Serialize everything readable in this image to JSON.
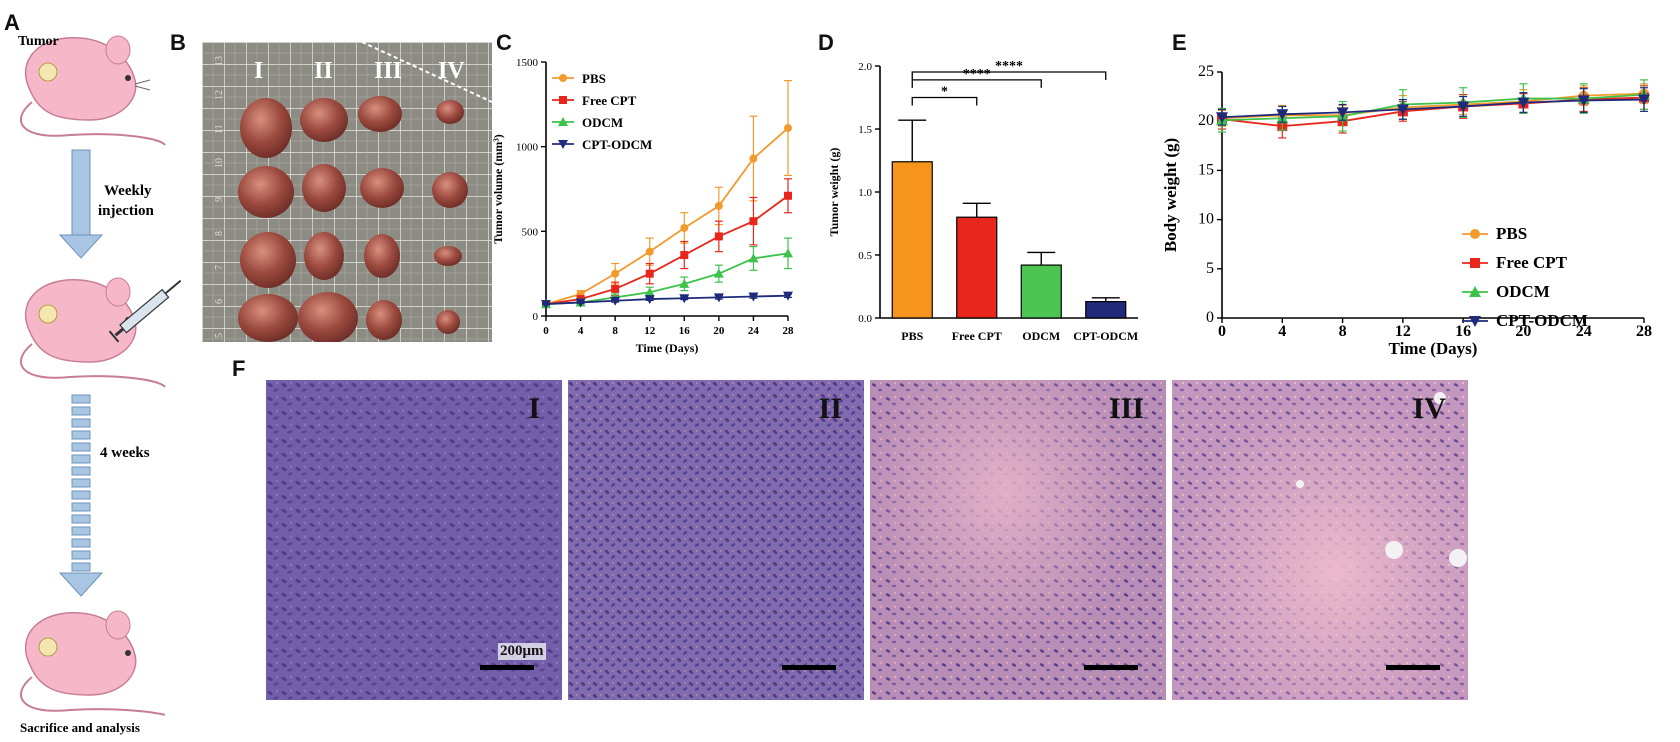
{
  "panels": {
    "a": "A",
    "b": "B",
    "c": "C",
    "d": "D",
    "e": "E",
    "f": "F"
  },
  "schematic": {
    "tumor_label": "Tumor",
    "weekly_injection_1": "Weekly",
    "weekly_injection_2": "injection",
    "duration": "4 weeks",
    "end_label": "Sacrifice and analysis"
  },
  "photo": {
    "group_labels": [
      "I",
      "II",
      "III",
      "IV"
    ],
    "ruler_ticks": [
      "13",
      "12",
      "11",
      "10",
      "9",
      "8",
      "7",
      "6",
      "5"
    ]
  },
  "histology": {
    "group_labels": [
      "I",
      "II",
      "III",
      "IV"
    ],
    "scale_bar": "200μm"
  },
  "chart_data": [
    {
      "type": "line",
      "panel": "C",
      "xlabel": "Time (Days)",
      "ylabel": "Tumor volume (mm³)",
      "x": [
        0,
        4,
        8,
        12,
        16,
        20,
        24,
        28
      ],
      "xlim": [
        0,
        28
      ],
      "ylim": [
        0,
        1500
      ],
      "yticks": [
        0,
        500,
        1000,
        1500
      ],
      "legend_placement": "top-left",
      "series": [
        {
          "name": "PBS",
          "color": "#F39A2E",
          "values": [
            70,
            130,
            250,
            380,
            520,
            650,
            930,
            1110
          ],
          "errors": [
            10,
            20,
            60,
            80,
            90,
            110,
            250,
            280
          ]
        },
        {
          "name": "Free CPT",
          "color": "#E8261C",
          "values": [
            70,
            100,
            160,
            250,
            360,
            470,
            560,
            710
          ],
          "errors": [
            10,
            15,
            40,
            60,
            80,
            90,
            140,
            100
          ]
        },
        {
          "name": "ODCM",
          "color": "#3DC24A",
          "values": [
            70,
            80,
            110,
            140,
            190,
            250,
            340,
            370
          ],
          "errors": [
            8,
            10,
            20,
            30,
            40,
            50,
            70,
            90
          ]
        },
        {
          "name": "CPT-ODCM",
          "color": "#1F2A7A",
          "values": [
            70,
            80,
            90,
            100,
            105,
            110,
            115,
            120
          ],
          "errors": [
            5,
            5,
            8,
            8,
            8,
            10,
            10,
            10
          ]
        }
      ]
    },
    {
      "type": "bar",
      "panel": "D",
      "ylabel": "Tumor weight (g)",
      "categories": [
        "PBS",
        "Free CPT",
        "ODCM",
        "CPT-ODCM"
      ],
      "values": [
        1.24,
        0.8,
        0.42,
        0.13
      ],
      "errors": [
        0.33,
        0.11,
        0.1,
        0.03
      ],
      "colors": [
        "#F7941D",
        "#E8261C",
        "#4CC552",
        "#1F2A7A"
      ],
      "ylim": [
        0,
        2.0
      ],
      "yticks": [
        "0.0",
        "0.5",
        "1.0",
        "1.5",
        "2.0"
      ],
      "significance": [
        {
          "from": "PBS",
          "to": "Free CPT",
          "label": "*"
        },
        {
          "from": "PBS",
          "to": "ODCM",
          "label": "****"
        },
        {
          "from": "PBS",
          "to": "CPT-ODCM",
          "label": "****"
        }
      ]
    },
    {
      "type": "line",
      "panel": "E",
      "xlabel": "Time (Days)",
      "ylabel": "Body weight (g)",
      "x": [
        0,
        4,
        8,
        12,
        16,
        20,
        24,
        28
      ],
      "xlim": [
        0,
        28
      ],
      "ylim": [
        0,
        25
      ],
      "yticks": [
        0,
        5,
        10,
        15,
        20,
        25
      ],
      "legend_placement": "bottom-right",
      "series": [
        {
          "name": "PBS",
          "color": "#F39A2E",
          "values": [
            20.3,
            20.6,
            20.6,
            21.4,
            21.7,
            22.0,
            22.6,
            22.8
          ],
          "errors": [
            0.8,
            1.0,
            1.0,
            1.2,
            1.0,
            1.2,
            1.0,
            1.0
          ]
        },
        {
          "name": "Free CPT",
          "color": "#E8261C",
          "values": [
            20.2,
            19.5,
            20.0,
            21.0,
            21.5,
            21.8,
            22.2,
            22.4
          ],
          "errors": [
            1.0,
            1.2,
            1.2,
            1.0,
            1.2,
            1.0,
            1.2,
            1.2
          ]
        },
        {
          "name": "ODCM",
          "color": "#3DC24A",
          "values": [
            20.1,
            20.3,
            20.5,
            21.7,
            21.9,
            22.3,
            22.3,
            22.7
          ],
          "errors": [
            1.2,
            1.2,
            1.5,
            1.5,
            1.5,
            1.5,
            1.5,
            1.5
          ]
        },
        {
          "name": "CPT-ODCM",
          "color": "#1F2A7A",
          "values": [
            20.4,
            20.7,
            20.9,
            21.2,
            21.5,
            21.9,
            22.1,
            22.2
          ],
          "errors": [
            0.8,
            0.8,
            0.8,
            1.0,
            1.0,
            1.0,
            1.2,
            1.2
          ]
        }
      ]
    }
  ]
}
